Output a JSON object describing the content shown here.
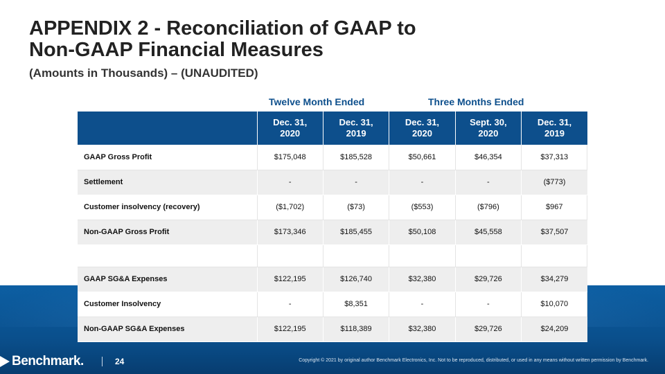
{
  "title": {
    "line1": "APPENDIX 2 - Reconciliation of GAAP to",
    "line2": "Non-GAAP Financial Measures"
  },
  "subtitle": "(Amounts in Thousands) – (UNAUDITED)",
  "period_headers": {
    "twelve": "Twelve Month Ended",
    "three": "Three Months Ended"
  },
  "table": {
    "columns": [
      {
        "line1": "Dec. 31,",
        "line2": "2020"
      },
      {
        "line1": "Dec. 31,",
        "line2": "2019"
      },
      {
        "line1": "Dec. 31,",
        "line2": "2020"
      },
      {
        "line1": "Sept. 30,",
        "line2": "2020"
      },
      {
        "line1": "Dec. 31,",
        "line2": "2019"
      }
    ],
    "rows": [
      {
        "label": "GAAP Gross Profit",
        "values": [
          "$175,048",
          "$185,528",
          "$50,661",
          "$46,354",
          "$37,313"
        ]
      },
      {
        "label": "Settlement",
        "values": [
          "-",
          "-",
          "-",
          "-",
          "($773)"
        ]
      },
      {
        "label": "Customer insolvency (recovery)",
        "values": [
          "($1,702)",
          "($73)",
          "($553)",
          "($796)",
          "$967"
        ]
      },
      {
        "label": "Non-GAAP Gross Profit",
        "values": [
          "$173,346",
          "$185,455",
          "$50,108",
          "$45,558",
          "$37,507"
        ]
      },
      {
        "label": "",
        "values": [
          "",
          "",
          "",
          "",
          ""
        ]
      },
      {
        "label": "GAAP SG&A Expenses",
        "values": [
          "$122,195",
          "$126,740",
          "$32,380",
          "$29,726",
          "$34,279"
        ]
      },
      {
        "label": "Customer Insolvency",
        "values": [
          "-",
          "$8,351",
          "-",
          "-",
          "$10,070"
        ]
      },
      {
        "label": "Non-GAAP SG&A Expenses",
        "values": [
          "$122,195",
          "$118,389",
          "$32,380",
          "$29,726",
          "$24,209"
        ]
      }
    ]
  },
  "footer": {
    "logo_text": "Benchmark.",
    "page_number": "24",
    "copyright": "Copyright © 2021 by original author Benchmark Electronics, Inc. Not to be reproduced, distributed, or used in any means without written permission by Benchmark."
  },
  "colors": {
    "header_blue": "#0d4f8c",
    "band_blue": "#0a4f8c",
    "row_shade": "#eeeeee"
  },
  "icons": {
    "logo_mark": "play-triangle-icon"
  }
}
